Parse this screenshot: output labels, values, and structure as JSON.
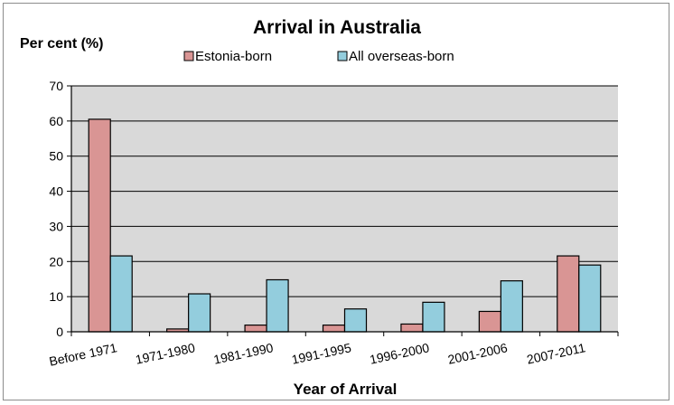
{
  "chart_data": {
    "type": "bar",
    "title": "Arrival in Australia",
    "ylabel": "Per cent (%)",
    "xlabel": "Year of Arrival",
    "categories": [
      "Before 1971",
      "1971-1980",
      "1981-1990",
      "1991-1995",
      "1996-2000",
      "2001-2006",
      "2007-2011"
    ],
    "series": [
      {
        "name": "Estonia-born",
        "values": [
          60.5,
          0.8,
          1.9,
          1.9,
          2.2,
          5.8,
          21.6
        ],
        "color": "#d99594"
      },
      {
        "name": "All overseas-born",
        "values": [
          21.6,
          10.8,
          14.8,
          6.5,
          8.4,
          14.5,
          19.0
        ],
        "color": "#93cddd"
      }
    ],
    "ylim": [
      0,
      70
    ],
    "yticks": [
      0,
      10,
      20,
      30,
      40,
      50,
      60,
      70
    ],
    "grid": true,
    "plot_background": "#d9d9d9",
    "legend_position": "top"
  }
}
